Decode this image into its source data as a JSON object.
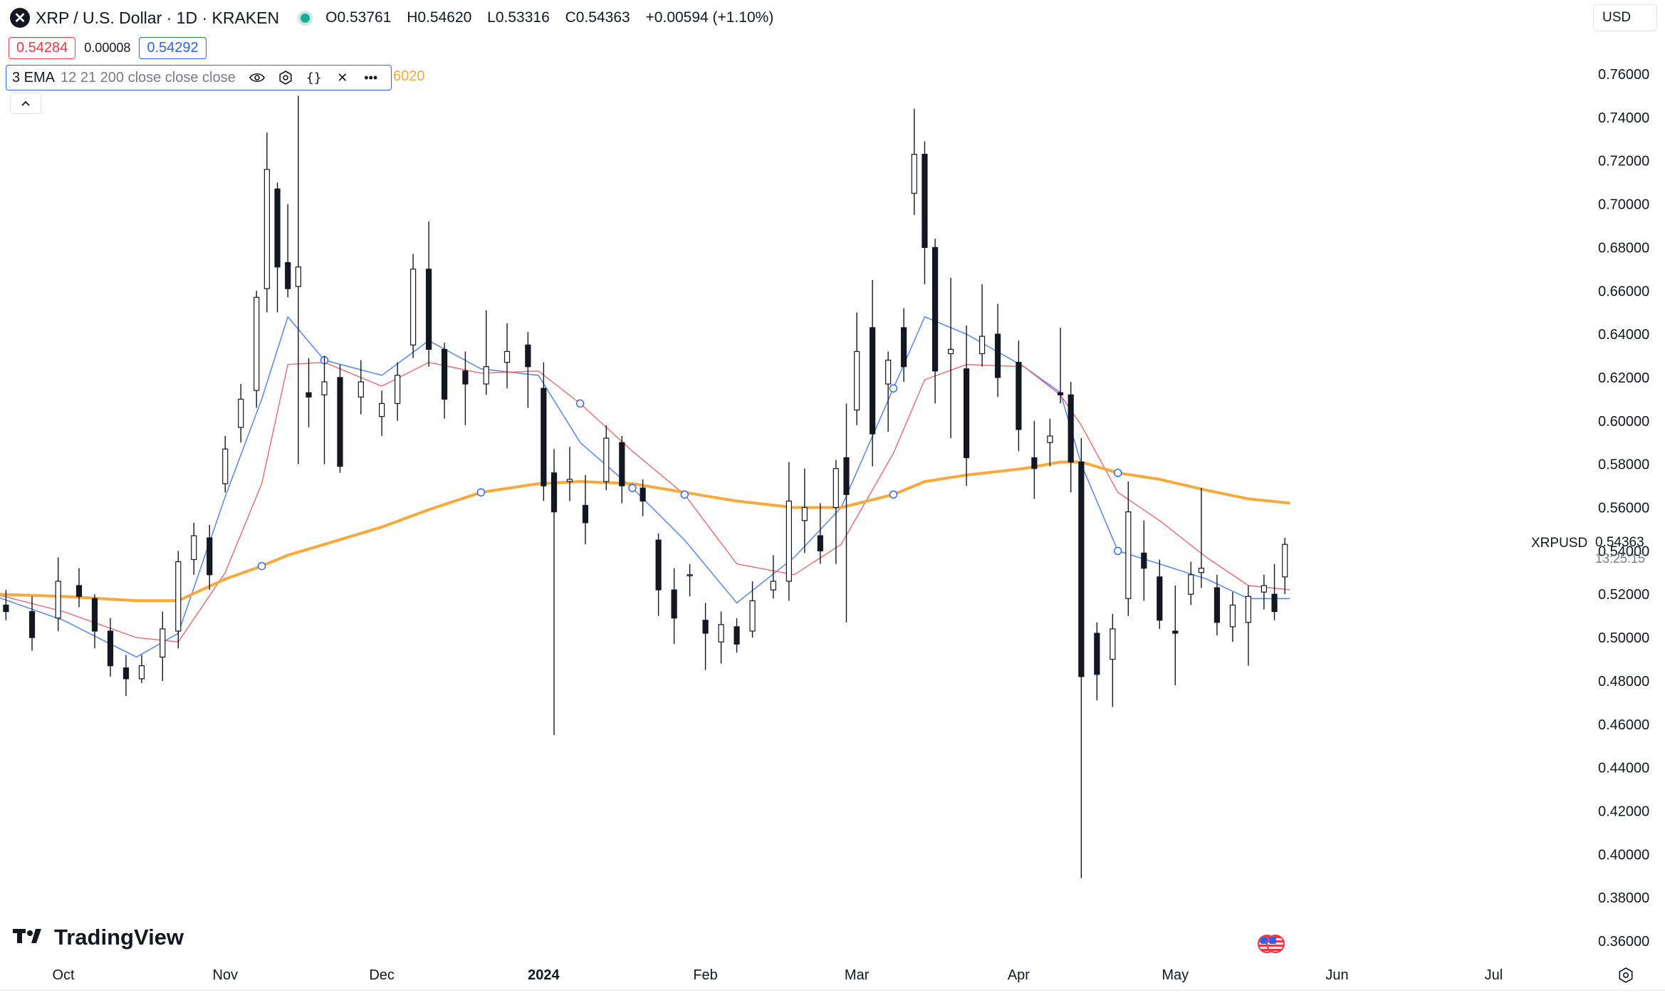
{
  "header": {
    "symbol_icon": "xrp-logo-icon",
    "title": "XRP / U.S. Dollar · 1D · KRAKEN",
    "ohlc": {
      "open_label": "O",
      "open": "0.53761",
      "high_label": "H",
      "high": "0.54620",
      "low_label": "L",
      "low": "0.53316",
      "close_label": "C",
      "close": "0.54363",
      "change": "+0.00594 (+1.10%)"
    }
  },
  "bid_ask": {
    "bid": "0.54284",
    "spread": "0.00008",
    "ask": "0.54292"
  },
  "indicator": {
    "name": "3 EMA",
    "params": "12 21 200 close close close",
    "trailing_value": "6020",
    "icons": [
      "eye-icon",
      "settings-icon",
      "source-code-icon",
      "close-icon",
      "more-icon"
    ]
  },
  "currency": "USD",
  "price_axis": {
    "ticks": [
      "0.76000",
      "0.74000",
      "0.72000",
      "0.70000",
      "0.68000",
      "0.66000",
      "0.64000",
      "0.62000",
      "0.60000",
      "0.58000",
      "0.56000",
      "0.54000",
      "0.52000",
      "0.50000",
      "0.48000",
      "0.46000",
      "0.44000",
      "0.42000",
      "0.40000",
      "0.38000",
      "0.36000"
    ],
    "last_label": "XRPUSD",
    "last_value": "0.54363",
    "countdown": "13:25:15"
  },
  "time_axis": {
    "labels": [
      "Oct",
      "Nov",
      "Dec",
      "2024",
      "Feb",
      "Mar",
      "Apr",
      "May",
      "Jun",
      "Jul"
    ]
  },
  "branding": {
    "logo_text": "TradingView"
  },
  "colors": {
    "up": "#131722",
    "down": "#131722",
    "ema12": "#5b8def",
    "ema21": "#f0666e",
    "ema200": "#f7a93b",
    "accent": "#2962ff"
  },
  "chart_data": {
    "type": "candlestick",
    "title": "XRP / U.S. Dollar · 1D · KRAKEN",
    "ylim": [
      0.35,
      0.77
    ],
    "x_range": [
      "2023-09-18",
      "2024-07-24"
    ],
    "grid": false,
    "series": [
      {
        "name": "12",
        "type": "line",
        "points": [
          [
            "2023-09-18",
            0.519
          ],
          [
            "2023-10-01",
            0.508
          ],
          [
            "2023-10-15",
            0.491
          ],
          [
            "2023-10-23",
            0.502
          ],
          [
            "2023-11-01",
            0.565
          ],
          [
            "2023-11-08",
            0.61
          ],
          [
            "2023-11-13",
            0.648
          ],
          [
            "2023-11-20",
            0.628
          ],
          [
            "2023-12-01",
            0.621
          ],
          [
            "2023-12-10",
            0.637
          ],
          [
            "2023-12-20",
            0.624
          ],
          [
            "2023-12-31",
            0.621
          ],
          [
            "2024-01-08",
            0.59
          ],
          [
            "2024-01-18",
            0.569
          ],
          [
            "2024-01-28",
            0.545
          ],
          [
            "2024-02-07",
            0.516
          ],
          [
            "2024-02-18",
            0.537
          ],
          [
            "2024-02-27",
            0.56
          ],
          [
            "2024-03-08",
            0.615
          ],
          [
            "2024-03-14",
            0.648
          ],
          [
            "2024-03-22",
            0.64
          ],
          [
            "2024-04-02",
            0.625
          ],
          [
            "2024-04-09",
            0.613
          ],
          [
            "2024-04-13",
            0.58
          ],
          [
            "2024-04-20",
            0.54
          ],
          [
            "2024-04-28",
            0.534
          ],
          [
            "2024-05-07",
            0.527
          ],
          [
            "2024-05-15",
            0.518
          ],
          [
            "2024-05-23",
            0.518
          ]
        ]
      },
      {
        "name": "21",
        "type": "line",
        "points": [
          [
            "2023-09-18",
            0.52
          ],
          [
            "2023-10-01",
            0.512
          ],
          [
            "2023-10-15",
            0.5
          ],
          [
            "2023-10-23",
            0.498
          ],
          [
            "2023-11-01",
            0.53
          ],
          [
            "2023-11-08",
            0.571
          ],
          [
            "2023-11-13",
            0.626
          ],
          [
            "2023-11-20",
            0.627
          ],
          [
            "2023-12-01",
            0.616
          ],
          [
            "2023-12-10",
            0.627
          ],
          [
            "2023-12-20",
            0.622
          ],
          [
            "2023-12-31",
            0.623
          ],
          [
            "2024-01-08",
            0.608
          ],
          [
            "2024-01-18",
            0.586
          ],
          [
            "2024-01-28",
            0.566
          ],
          [
            "2024-02-07",
            0.534
          ],
          [
            "2024-02-18",
            0.529
          ],
          [
            "2024-02-27",
            0.543
          ],
          [
            "2024-03-08",
            0.585
          ],
          [
            "2024-03-14",
            0.619
          ],
          [
            "2024-03-22",
            0.626
          ],
          [
            "2024-04-02",
            0.625
          ],
          [
            "2024-04-09",
            0.612
          ],
          [
            "2024-04-13",
            0.598
          ],
          [
            "2024-04-20",
            0.567
          ],
          [
            "2024-04-28",
            0.554
          ],
          [
            "2024-05-07",
            0.537
          ],
          [
            "2024-05-15",
            0.524
          ],
          [
            "2024-05-23",
            0.522
          ]
        ]
      },
      {
        "name": "200",
        "type": "line",
        "points": [
          [
            "2023-09-18",
            0.52
          ],
          [
            "2023-10-01",
            0.519
          ],
          [
            "2023-10-15",
            0.517
          ],
          [
            "2023-10-23",
            0.517
          ],
          [
            "2023-11-01",
            0.527
          ],
          [
            "2023-11-08",
            0.533
          ],
          [
            "2023-11-13",
            0.538
          ],
          [
            "2023-11-20",
            0.543
          ],
          [
            "2023-12-01",
            0.551
          ],
          [
            "2023-12-10",
            0.559
          ],
          [
            "2023-12-20",
            0.567
          ],
          [
            "2023-12-31",
            0.571
          ],
          [
            "2024-01-08",
            0.572
          ],
          [
            "2024-01-18",
            0.571
          ],
          [
            "2024-01-28",
            0.567
          ],
          [
            "2024-02-07",
            0.563
          ],
          [
            "2024-02-18",
            0.56
          ],
          [
            "2024-02-27",
            0.56
          ],
          [
            "2024-03-08",
            0.566
          ],
          [
            "2024-03-14",
            0.572
          ],
          [
            "2024-03-22",
            0.575
          ],
          [
            "2024-04-02",
            0.578
          ],
          [
            "2024-04-09",
            0.581
          ],
          [
            "2024-04-13",
            0.581
          ],
          [
            "2024-04-20",
            0.576
          ],
          [
            "2024-04-28",
            0.573
          ],
          [
            "2024-05-07",
            0.568
          ],
          [
            "2024-05-15",
            0.564
          ],
          [
            "2024-05-23",
            0.562
          ]
        ]
      }
    ],
    "candles": [
      {
        "date": "2023-09-20",
        "o": 0.515,
        "h": 0.522,
        "l": 0.508,
        "c": 0.512
      },
      {
        "date": "2023-09-25",
        "o": 0.512,
        "h": 0.519,
        "l": 0.494,
        "c": 0.5
      },
      {
        "date": "2023-09-30",
        "o": 0.509,
        "h": 0.537,
        "l": 0.503,
        "c": 0.526
      },
      {
        "date": "2023-10-04",
        "o": 0.524,
        "h": 0.532,
        "l": 0.514,
        "c": 0.519
      },
      {
        "date": "2023-10-07",
        "o": 0.518,
        "h": 0.52,
        "l": 0.495,
        "c": 0.503
      },
      {
        "date": "2023-10-10",
        "o": 0.503,
        "h": 0.509,
        "l": 0.482,
        "c": 0.487
      },
      {
        "date": "2023-10-13",
        "o": 0.486,
        "h": 0.492,
        "l": 0.473,
        "c": 0.481
      },
      {
        "date": "2023-10-16",
        "o": 0.481,
        "h": 0.492,
        "l": 0.479,
        "c": 0.487
      },
      {
        "date": "2023-10-20",
        "o": 0.491,
        "h": 0.512,
        "l": 0.48,
        "c": 0.504
      },
      {
        "date": "2023-10-23",
        "o": 0.503,
        "h": 0.54,
        "l": 0.495,
        "c": 0.535
      },
      {
        "date": "2023-10-26",
        "o": 0.536,
        "h": 0.553,
        "l": 0.529,
        "c": 0.547
      },
      {
        "date": "2023-10-29",
        "o": 0.546,
        "h": 0.552,
        "l": 0.522,
        "c": 0.529
      },
      {
        "date": "2023-11-01",
        "o": 0.571,
        "h": 0.593,
        "l": 0.567,
        "c": 0.587
      },
      {
        "date": "2023-11-04",
        "o": 0.597,
        "h": 0.617,
        "l": 0.59,
        "c": 0.61
      },
      {
        "date": "2023-11-07",
        "o": 0.614,
        "h": 0.66,
        "l": 0.606,
        "c": 0.657
      },
      {
        "date": "2023-11-09",
        "o": 0.661,
        "h": 0.733,
        "l": 0.65,
        "c": 0.716
      },
      {
        "date": "2023-11-11",
        "o": 0.707,
        "h": 0.71,
        "l": 0.65,
        "c": 0.671
      },
      {
        "date": "2023-11-13",
        "o": 0.673,
        "h": 0.7,
        "l": 0.657,
        "c": 0.661
      },
      {
        "date": "2023-11-15",
        "o": 0.662,
        "h": 0.75,
        "l": 0.58,
        "c": 0.671
      },
      {
        "date": "2023-11-17",
        "o": 0.613,
        "h": 0.629,
        "l": 0.597,
        "c": 0.611
      },
      {
        "date": "2023-11-20",
        "o": 0.612,
        "h": 0.63,
        "l": 0.58,
        "c": 0.618
      },
      {
        "date": "2023-11-23",
        "o": 0.62,
        "h": 0.626,
        "l": 0.576,
        "c": 0.579
      },
      {
        "date": "2023-11-27",
        "o": 0.611,
        "h": 0.628,
        "l": 0.603,
        "c": 0.618
      },
      {
        "date": "2023-12-01",
        "o": 0.602,
        "h": 0.614,
        "l": 0.593,
        "c": 0.608
      },
      {
        "date": "2023-12-04",
        "o": 0.608,
        "h": 0.627,
        "l": 0.6,
        "c": 0.621
      },
      {
        "date": "2023-12-07",
        "o": 0.635,
        "h": 0.677,
        "l": 0.629,
        "c": 0.67
      },
      {
        "date": "2023-12-10",
        "o": 0.67,
        "h": 0.692,
        "l": 0.625,
        "c": 0.633
      },
      {
        "date": "2023-12-13",
        "o": 0.633,
        "h": 0.636,
        "l": 0.601,
        "c": 0.61
      },
      {
        "date": "2023-12-17",
        "o": 0.623,
        "h": 0.632,
        "l": 0.598,
        "c": 0.617
      },
      {
        "date": "2023-12-21",
        "o": 0.617,
        "h": 0.651,
        "l": 0.612,
        "c": 0.625
      },
      {
        "date": "2023-12-25",
        "o": 0.627,
        "h": 0.645,
        "l": 0.615,
        "c": 0.632
      },
      {
        "date": "2023-12-29",
        "o": 0.635,
        "h": 0.641,
        "l": 0.606,
        "c": 0.625
      },
      {
        "date": "2024-01-01",
        "o": 0.615,
        "h": 0.627,
        "l": 0.563,
        "c": 0.57
      },
      {
        "date": "2024-01-03",
        "o": 0.576,
        "h": 0.587,
        "l": 0.455,
        "c": 0.558
      },
      {
        "date": "2024-01-06",
        "o": 0.572,
        "h": 0.588,
        "l": 0.563,
        "c": 0.573
      },
      {
        "date": "2024-01-09",
        "o": 0.561,
        "h": 0.575,
        "l": 0.543,
        "c": 0.553
      },
      {
        "date": "2024-01-13",
        "o": 0.572,
        "h": 0.598,
        "l": 0.568,
        "c": 0.592
      },
      {
        "date": "2024-01-16",
        "o": 0.59,
        "h": 0.593,
        "l": 0.562,
        "c": 0.57
      },
      {
        "date": "2024-01-20",
        "o": 0.569,
        "h": 0.573,
        "l": 0.556,
        "c": 0.563
      },
      {
        "date": "2024-01-23",
        "o": 0.545,
        "h": 0.548,
        "l": 0.51,
        "c": 0.522
      },
      {
        "date": "2024-01-26",
        "o": 0.522,
        "h": 0.532,
        "l": 0.497,
        "c": 0.509
      },
      {
        "date": "2024-01-29",
        "o": 0.529,
        "h": 0.534,
        "l": 0.519,
        "c": 0.529
      },
      {
        "date": "2024-02-01",
        "o": 0.508,
        "h": 0.516,
        "l": 0.485,
        "c": 0.502
      },
      {
        "date": "2024-02-04",
        "o": 0.498,
        "h": 0.512,
        "l": 0.488,
        "c": 0.506
      },
      {
        "date": "2024-02-07",
        "o": 0.505,
        "h": 0.509,
        "l": 0.493,
        "c": 0.497
      },
      {
        "date": "2024-02-10",
        "o": 0.503,
        "h": 0.526,
        "l": 0.5,
        "c": 0.517
      },
      {
        "date": "2024-02-14",
        "o": 0.522,
        "h": 0.538,
        "l": 0.518,
        "c": 0.526
      },
      {
        "date": "2024-02-17",
        "o": 0.526,
        "h": 0.581,
        "l": 0.517,
        "c": 0.563
      },
      {
        "date": "2024-02-20",
        "o": 0.554,
        "h": 0.578,
        "l": 0.539,
        "c": 0.56
      },
      {
        "date": "2024-02-23",
        "o": 0.547,
        "h": 0.562,
        "l": 0.534,
        "c": 0.54
      },
      {
        "date": "2024-02-26",
        "o": 0.56,
        "h": 0.582,
        "l": 0.534,
        "c": 0.578
      },
      {
        "date": "2024-02-28",
        "o": 0.583,
        "h": 0.608,
        "l": 0.507,
        "c": 0.566
      },
      {
        "date": "2024-03-01",
        "o": 0.605,
        "h": 0.65,
        "l": 0.598,
        "c": 0.632
      },
      {
        "date": "2024-03-04",
        "o": 0.643,
        "h": 0.665,
        "l": 0.579,
        "c": 0.594
      },
      {
        "date": "2024-03-07",
        "o": 0.617,
        "h": 0.632,
        "l": 0.595,
        "c": 0.628
      },
      {
        "date": "2024-03-10",
        "o": 0.643,
        "h": 0.652,
        "l": 0.618,
        "c": 0.625
      },
      {
        "date": "2024-03-12",
        "o": 0.705,
        "h": 0.744,
        "l": 0.695,
        "c": 0.723
      },
      {
        "date": "2024-03-14",
        "o": 0.723,
        "h": 0.729,
        "l": 0.663,
        "c": 0.68
      },
      {
        "date": "2024-03-16",
        "o": 0.68,
        "h": 0.684,
        "l": 0.608,
        "c": 0.623
      },
      {
        "date": "2024-03-19",
        "o": 0.631,
        "h": 0.666,
        "l": 0.592,
        "c": 0.633
      },
      {
        "date": "2024-03-22",
        "o": 0.624,
        "h": 0.644,
        "l": 0.57,
        "c": 0.583
      },
      {
        "date": "2024-03-25",
        "o": 0.631,
        "h": 0.663,
        "l": 0.625,
        "c": 0.639
      },
      {
        "date": "2024-03-28",
        "o": 0.64,
        "h": 0.654,
        "l": 0.611,
        "c": 0.62
      },
      {
        "date": "2024-04-01",
        "o": 0.627,
        "h": 0.637,
        "l": 0.586,
        "c": 0.596
      },
      {
        "date": "2024-04-04",
        "o": 0.583,
        "h": 0.6,
        "l": 0.564,
        "c": 0.578
      },
      {
        "date": "2024-04-07",
        "o": 0.59,
        "h": 0.601,
        "l": 0.579,
        "c": 0.593
      },
      {
        "date": "2024-04-09",
        "o": 0.613,
        "h": 0.643,
        "l": 0.608,
        "c": 0.612
      },
      {
        "date": "2024-04-11",
        "o": 0.612,
        "h": 0.618,
        "l": 0.567,
        "c": 0.581
      },
      {
        "date": "2024-04-13",
        "o": 0.581,
        "h": 0.592,
        "l": 0.389,
        "c": 0.482
      },
      {
        "date": "2024-04-16",
        "o": 0.502,
        "h": 0.507,
        "l": 0.471,
        "c": 0.483
      },
      {
        "date": "2024-04-19",
        "o": 0.49,
        "h": 0.511,
        "l": 0.468,
        "c": 0.504
      },
      {
        "date": "2024-04-22",
        "o": 0.518,
        "h": 0.572,
        "l": 0.51,
        "c": 0.558
      },
      {
        "date": "2024-04-25",
        "o": 0.539,
        "h": 0.554,
        "l": 0.517,
        "c": 0.532
      },
      {
        "date": "2024-04-28",
        "o": 0.528,
        "h": 0.536,
        "l": 0.504,
        "c": 0.508
      },
      {
        "date": "2024-05-01",
        "o": 0.503,
        "h": 0.524,
        "l": 0.478,
        "c": 0.502
      },
      {
        "date": "2024-05-04",
        "o": 0.52,
        "h": 0.535,
        "l": 0.515,
        "c": 0.529
      },
      {
        "date": "2024-05-06",
        "o": 0.53,
        "h": 0.569,
        "l": 0.523,
        "c": 0.532
      },
      {
        "date": "2024-05-09",
        "o": 0.523,
        "h": 0.529,
        "l": 0.501,
        "c": 0.507
      },
      {
        "date": "2024-05-12",
        "o": 0.505,
        "h": 0.521,
        "l": 0.498,
        "c": 0.515
      },
      {
        "date": "2024-05-15",
        "o": 0.507,
        "h": 0.524,
        "l": 0.487,
        "c": 0.519
      },
      {
        "date": "2024-05-18",
        "o": 0.521,
        "h": 0.529,
        "l": 0.513,
        "c": 0.524
      },
      {
        "date": "2024-05-20",
        "o": 0.52,
        "h": 0.534,
        "l": 0.508,
        "c": 0.512
      },
      {
        "date": "2024-05-22",
        "o": 0.528,
        "h": 0.546,
        "l": 0.52,
        "c": 0.543
      }
    ]
  }
}
